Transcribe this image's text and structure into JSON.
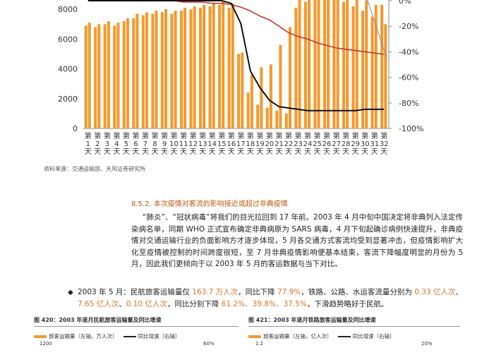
{
  "chart_data": {
    "type": "bar",
    "categories": [
      "第1天",
      "第2天",
      "第3天",
      "第4天",
      "第5天",
      "第6天",
      "第7天",
      "第8天",
      "第9天",
      "第10天",
      "第11天",
      "第12天",
      "第13天",
      "第14天",
      "第15天",
      "第16天",
      "第17天",
      "第18天",
      "第19天",
      "第20天",
      "第21天",
      "第22天",
      "第23天",
      "第24天",
      "第25天",
      "第26天",
      "第27天",
      "第28天",
      "第29天",
      "第30天",
      "第31天",
      "第32天"
    ],
    "category_labels": [
      [
        "第",
        "1",
        "天"
      ],
      [
        "第",
        "2",
        "天"
      ],
      [
        "第",
        "3",
        "天"
      ],
      [
        "第",
        "4",
        "天"
      ],
      [
        "第",
        "5",
        "天"
      ],
      [
        "第",
        "6",
        "天"
      ],
      [
        "第",
        "7",
        "天"
      ],
      [
        "第",
        "8",
        "天"
      ],
      [
        "第",
        "9",
        "天"
      ],
      [
        "第",
        "10",
        "天"
      ],
      [
        "第",
        "11",
        "天"
      ],
      [
        "第",
        "12",
        "天"
      ],
      [
        "第",
        "13",
        "天"
      ],
      [
        "第",
        "14",
        "天"
      ],
      [
        "第",
        "15",
        "天"
      ],
      [
        "第",
        "16",
        "天"
      ],
      [
        "第",
        "17",
        "天"
      ],
      [
        "第",
        "18",
        "天"
      ],
      [
        "第",
        "19",
        "天"
      ],
      [
        "第",
        "20",
        "天"
      ],
      [
        "第",
        "21",
        "天"
      ],
      [
        "第",
        "22",
        "天"
      ],
      [
        "第",
        "23",
        "天"
      ],
      [
        "第",
        "24",
        "天"
      ],
      [
        "第",
        "25",
        "天"
      ],
      [
        "第",
        "26",
        "天"
      ],
      [
        "第",
        "27",
        "天"
      ],
      [
        "第",
        "28",
        "天"
      ],
      [
        "第",
        "29",
        "天"
      ],
      [
        "第",
        "30",
        "天"
      ],
      [
        "第",
        "31",
        "天"
      ],
      [
        "第",
        "32",
        "天"
      ]
    ],
    "series": [
      {
        "type": "bar",
        "values": [
          [
            6900,
            7100
          ],
          [
            6800,
            7000
          ],
          [
            7000,
            7200
          ],
          [
            6900,
            7100
          ],
          [
            7200,
            7400
          ],
          [
            7400,
            7700
          ],
          [
            7600,
            7800
          ],
          [
            7700,
            7900
          ],
          [
            7800,
            8000
          ],
          [
            7700,
            7900
          ],
          [
            7900,
            8100
          ],
          [
            8000,
            8200
          ],
          [
            8100,
            8300
          ],
          [
            8200,
            8400
          ],
          [
            8300,
            8500
          ],
          [
            8100,
            8400
          ],
          [
            5000,
            5100
          ],
          [
            2400,
            3600
          ],
          [
            1600,
            4100
          ],
          [
            1400,
            4300
          ],
          [
            1200,
            5600
          ],
          [
            1000,
            6800
          ],
          [
            8100,
            9000
          ],
          [
            8500,
            9100
          ],
          [
            8700,
            9200
          ],
          [
            8900,
            9200
          ],
          [
            8800,
            9200
          ],
          [
            8500,
            9100
          ],
          [
            8200,
            8900
          ],
          [
            7900,
            8600
          ],
          [
            7500,
            8300
          ],
          [
            8300,
            7000
          ]
        ]
      },
      {
        "type": "line",
        "axis": "right",
        "values": [
          2,
          3,
          3,
          2,
          2,
          1,
          1,
          1,
          0,
          0,
          -1,
          -1,
          -1,
          -2,
          -2,
          -3,
          -5,
          -8,
          -12,
          -15,
          -20,
          -25,
          -28,
          -30,
          -33,
          -35,
          -37,
          -38,
          -39,
          -40,
          -41,
          -42
        ],
        "color": "#c0392b"
      },
      {
        "type": "line",
        "axis": "right",
        "values": [
          0,
          0,
          0,
          0,
          0,
          0,
          0,
          0,
          0,
          0,
          0,
          0,
          0,
          0,
          0,
          -2,
          -18,
          -55,
          -68,
          -78,
          -83,
          -84,
          -85,
          -86,
          -86,
          -86,
          -86,
          -86,
          -86,
          -85,
          -85,
          -85
        ],
        "color": "#111111"
      }
    ],
    "yticks_left": [
      0,
      2000,
      4000,
      6000,
      8000
    ],
    "yticks_right": [
      "0%",
      "-20%",
      "-40%",
      "-60%",
      "-80%",
      "-100%"
    ],
    "ylim": [
      0,
      9000
    ],
    "y2lim": [
      -100,
      5
    ]
  },
  "source_note": "资料来源：交通运输部、天风证券研究所",
  "section_title": "8.5.2. 本次疫情对客流的影响接近或超过非典疫情",
  "paragraph": "“肺炎”、“冠状病毒”将我们的目光拉回到 17 年前。2003 年 4 月中旬中国决定将非典列入法定传染病名单，同期 WHO 正式宣布确定非典病原为 SARS 病毒，4 月下旬起确诊病例快速提升，非典疫情对交通运输行业的负面影响方才逐步体现，5 月各交通方式客流均受到显著冲击，但疫情影响扩大化至疫情被控制的时间跨度很短，至 7 月非典疫情影响便基本结束，客流下降幅度明显的月份为 5 月，因此我们更倾向于以 2003 年 5 月的客运数据与当下对比。",
  "bullet": {
    "lead": "2003 年 5 月：",
    "t1": "民航旅客运输量仅 ",
    "v1": "163.7 万人次",
    "t2": "，同比下降 ",
    "v2": "77.9%",
    "t3": "，铁路、公路、水运客流量分别为 ",
    "v3": "0.33 亿人次",
    "t4": "、",
    "v4": "7.65 亿人次",
    "t5": "、",
    "v5": "0.10 亿人次",
    "t6": "，同比分别下降 ",
    "v6": "61.2%、39.8%、37.5%",
    "t7": "，下滑趋势略好于民航。"
  },
  "fig420": {
    "title": "图 420：2003 年逐月民航旅客运输量及同比增速",
    "legend_bar": "旅客运输量（左轴，万人次）",
    "legend_line": "同比增速（右轴）",
    "y_left_top": "1200",
    "y_right_top": "60%"
  },
  "fig421": {
    "title": "图 421：2003 年逐月铁路旅客运输量及同比增速",
    "legend_bar": "旅客运输量（左轴，亿人次）",
    "legend_line": "同比增速（右轴）",
    "y_left_top": "1.2",
    "y_right_top": "20%"
  }
}
